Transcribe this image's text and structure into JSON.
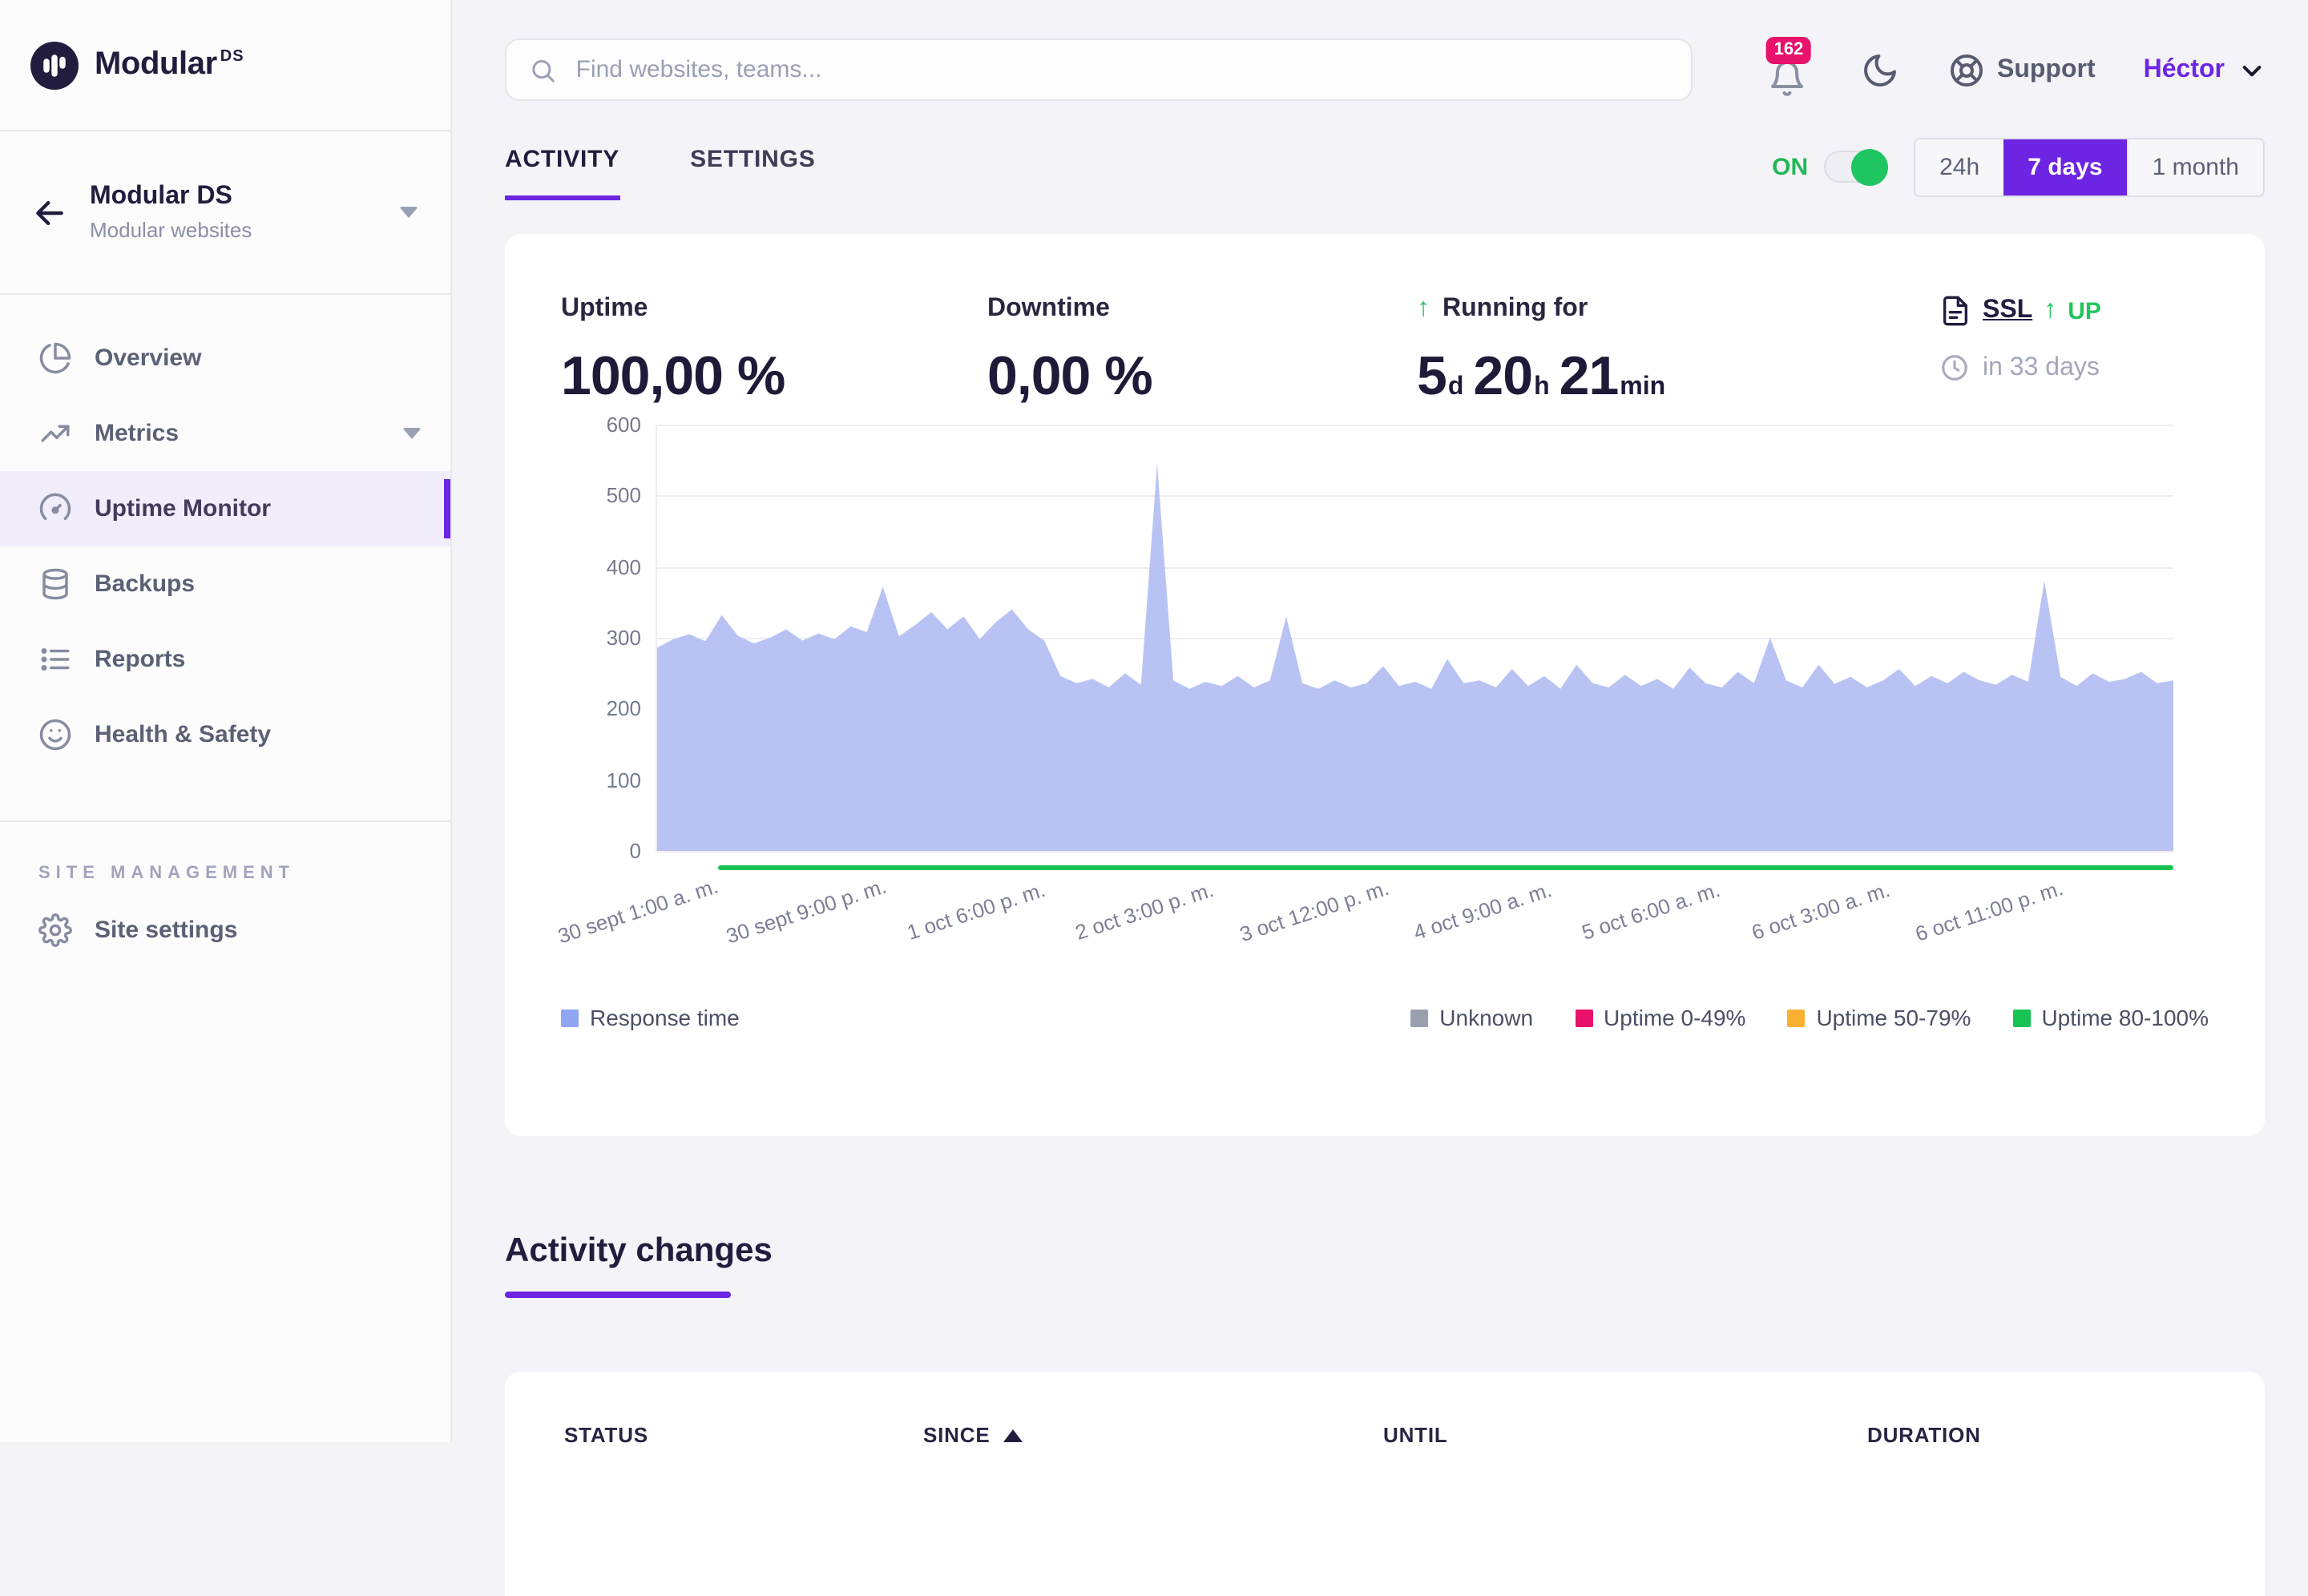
{
  "brand": {
    "wordmark": "Modular",
    "suffix": "DS"
  },
  "team_switcher": {
    "name": "Modular DS",
    "type": "Modular websites"
  },
  "search": {
    "placeholder": "Find websites, teams..."
  },
  "topbar": {
    "notification_count": "162",
    "support_label": "Support",
    "user_name": "Héctor"
  },
  "sidebar": {
    "items": [
      {
        "label": "Overview"
      },
      {
        "label": "Metrics"
      },
      {
        "label": "Uptime Monitor"
      },
      {
        "label": "Backups"
      },
      {
        "label": "Reports"
      },
      {
        "label": "Health & Safety"
      }
    ],
    "section_label": "SITE MANAGEMENT",
    "site_settings_label": "Site settings"
  },
  "tabs": {
    "activity": "ACTIVITY",
    "settings": "SETTINGS"
  },
  "controls": {
    "toggle_label": "ON",
    "ranges": {
      "r24h": "24h",
      "r7d": "7 days",
      "r1m": "1 month"
    },
    "active_range": "7 days"
  },
  "stats": {
    "uptime": {
      "label": "Uptime",
      "value": "100,00 %"
    },
    "downtime": {
      "label": "Downtime",
      "value": "0,00 %"
    },
    "running": {
      "label": "Running for",
      "days": "5",
      "days_unit": "d",
      "hours": "20",
      "hours_unit": "h",
      "minutes": "21",
      "minutes_unit": "min"
    },
    "ssl": {
      "label": "SSL",
      "status": "UP",
      "expiry": "in 33 days"
    }
  },
  "chart_data": {
    "type": "area",
    "title": "Response time",
    "ylim": [
      0,
      600
    ],
    "yticks": [
      0,
      100,
      200,
      300,
      400,
      500,
      600
    ],
    "grid": true,
    "x_tick_labels": [
      "30 sept 1:00 a. m.",
      "30 sept 9:00 p. m.",
      "1 oct 6:00 p. m.",
      "2 oct 3:00 p. m.",
      "3 oct 12:00 p. m.",
      "4 oct 9:00 a. m.",
      "5 oct 6:00 a. m.",
      "6 oct 3:00 a. m.",
      "6 oct 11:00 p. m."
    ],
    "series": [
      {
        "name": "Response time",
        "color": "#b8c3f4",
        "values": [
          286,
          298,
          305,
          295,
          332,
          303,
          292,
          300,
          312,
          296,
          306,
          298,
          316,
          308,
          372,
          302,
          318,
          336,
          312,
          330,
          298,
          322,
          340,
          312,
          296,
          246,
          236,
          242,
          230,
          250,
          234,
          545,
          240,
          228,
          238,
          232,
          246,
          230,
          240,
          330,
          236,
          228,
          240,
          230,
          236,
          260,
          232,
          238,
          228,
          270,
          236,
          240,
          230,
          256,
          232,
          246,
          228,
          262,
          236,
          230,
          248,
          232,
          242,
          228,
          258,
          236,
          230,
          252,
          236,
          300,
          240,
          230,
          262,
          235,
          245,
          230,
          240,
          256,
          232,
          246,
          236,
          252,
          240,
          234,
          248,
          238,
          380,
          245,
          232,
          250,
          238,
          242,
          252,
          236,
          240
        ]
      }
    ],
    "status_line": {
      "label": "Uptime 80-100%",
      "color": "#17c353",
      "start_fraction": 0.04
    },
    "legend_left": [
      {
        "label": "Response time",
        "color": "#8fa6f3"
      }
    ],
    "legend_right": [
      {
        "label": "Unknown",
        "color": "#9aa0af"
      },
      {
        "label": "Uptime 0-49%",
        "color": "#e8116b"
      },
      {
        "label": "Uptime 50-79%",
        "color": "#f8b133"
      },
      {
        "label": "Uptime 80-100%",
        "color": "#17c353"
      }
    ],
    "legend_position": "bottom"
  },
  "activity": {
    "heading": "Activity changes",
    "table_headers": [
      "STATUS",
      "SINCE",
      "UNTIL",
      "DURATION"
    ],
    "sorted_by": "SINCE",
    "sort_direction": "asc"
  },
  "colors": {
    "accent": "#6d24e3",
    "pink": "#e8116b",
    "green": "#17c353",
    "page_bg": "#f4f3f8",
    "area": "#b8c3f4"
  }
}
